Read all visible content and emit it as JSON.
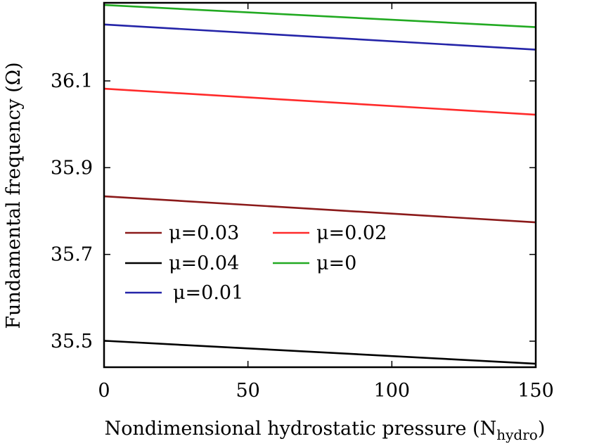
{
  "chart_data": {
    "type": "line",
    "title": "",
    "xlabel": "Nondimensional hydrostatic pressure (N",
    "xlabel_sub": "hydro",
    "xlabel_end": ")",
    "ylabel": "Fundamental frequency (Ω)",
    "xlim": [
      0,
      150
    ],
    "ylim": [
      35.44,
      36.28
    ],
    "xticks": [
      0,
      50,
      100,
      150
    ],
    "yticks": [
      35.5,
      35.7,
      35.9,
      36.1
    ],
    "xtick_labels": [
      "0",
      "50",
      "100",
      "150"
    ],
    "ytick_labels": [
      "35.5",
      "35.7",
      "35.9",
      "36.1"
    ],
    "grid": false,
    "legend_position": "center-left",
    "series": [
      {
        "name": "μ=0.03",
        "color": "#8b1a1a",
        "x": [
          0,
          150
        ],
        "y": [
          35.834,
          35.774
        ]
      },
      {
        "name": "μ=0.02",
        "color": "#ff2a2a",
        "x": [
          0,
          150
        ],
        "y": [
          36.082,
          36.022
        ]
      },
      {
        "name": "μ=0.04",
        "color": "#000000",
        "x": [
          0,
          150
        ],
        "y": [
          35.501,
          35.448
        ]
      },
      {
        "name": "μ=0",
        "color": "#22aa22",
        "x": [
          0,
          150
        ],
        "y": [
          36.275,
          36.224
        ]
      },
      {
        "name": "μ=0.01",
        "color": "#2424a8",
        "x": [
          0,
          150
        ],
        "y": [
          36.23,
          36.172
        ]
      }
    ]
  }
}
